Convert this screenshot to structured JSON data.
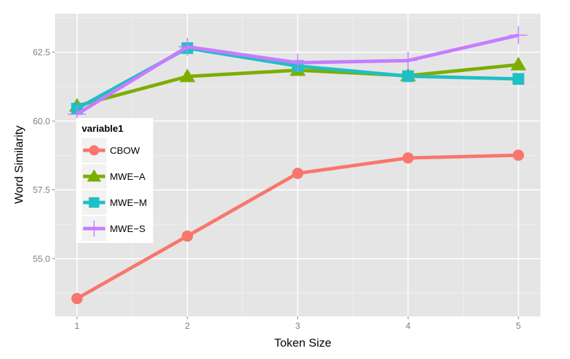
{
  "chart_data": {
    "type": "line",
    "title": "",
    "xlabel": "Token Size",
    "ylabel": "Word Similarity",
    "x": [
      1,
      2,
      3,
      4,
      5
    ],
    "x_ticks": [
      "1",
      "2",
      "3",
      "4",
      "5"
    ],
    "y_ticks": [
      "55.0",
      "57.5",
      "60.0",
      "62.5"
    ],
    "y_tick_values": [
      55.0,
      57.5,
      60.0,
      62.5
    ],
    "ylim": [
      52.9,
      63.9
    ],
    "xlim": [
      0.8,
      5.2
    ],
    "grid": true,
    "legend": {
      "title": "variable1",
      "placement": "inside-left"
    },
    "series": [
      {
        "name": "CBOW",
        "values": [
          53.55,
          55.82,
          58.1,
          58.66,
          58.76
        ],
        "color": "#F8766D",
        "marker": "circle"
      },
      {
        "name": "MWE−A",
        "values": [
          60.55,
          61.62,
          61.85,
          61.65,
          62.05
        ],
        "color": "#7CAE00",
        "marker": "triangle"
      },
      {
        "name": "MWE−M",
        "values": [
          60.45,
          62.65,
          62.0,
          61.63,
          61.53
        ],
        "color": "#1FBFC4",
        "marker": "square"
      },
      {
        "name": "MWE−S",
        "values": [
          60.25,
          62.7,
          62.12,
          62.2,
          63.12
        ],
        "color": "#C77CFF",
        "marker": "plus"
      }
    ]
  }
}
